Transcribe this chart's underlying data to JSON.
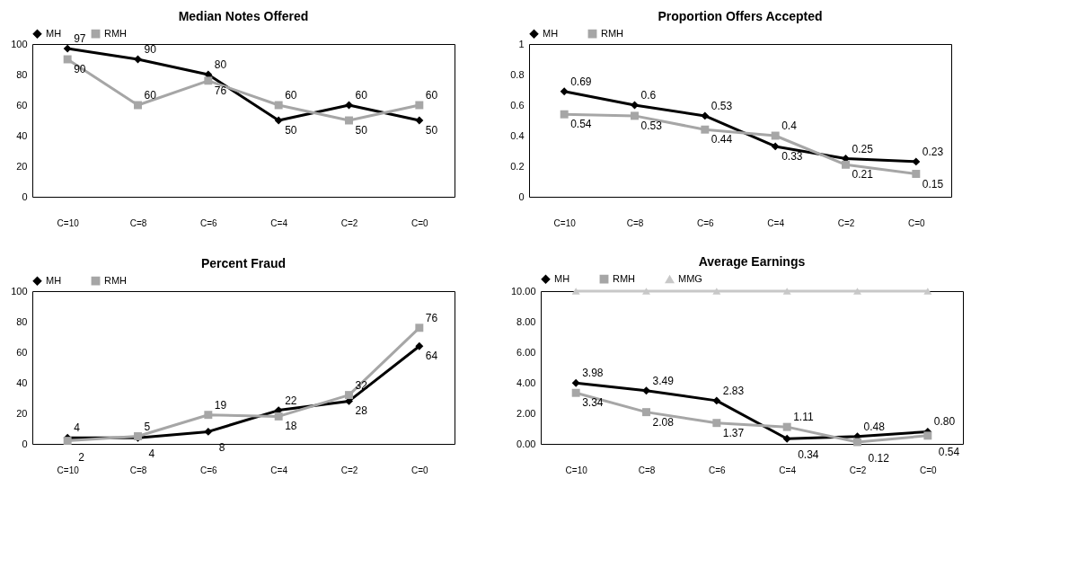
{
  "chart_data": [
    {
      "type": "line",
      "title": "Median Notes Offered",
      "categories": [
        "C=10",
        "C=8",
        "C=6",
        "C=4",
        "C=2",
        "C=0"
      ],
      "ylim": [
        0,
        100
      ],
      "yticks": [
        0,
        20,
        40,
        60,
        80,
        100
      ],
      "legend": "top",
      "grid": false,
      "data_labels": true,
      "series": [
        {
          "name": "MH",
          "color": "#000000",
          "marker": "diamond",
          "values": [
            97,
            90,
            80,
            50,
            60,
            50
          ]
        },
        {
          "name": "RMH",
          "color": "#a6a6a6",
          "marker": "square",
          "values": [
            90,
            60,
            76,
            60,
            50,
            60
          ]
        }
      ]
    },
    {
      "type": "line",
      "title": "Proportion Offers Accepted",
      "categories": [
        "C=10",
        "C=8",
        "C=6",
        "C=4",
        "C=2",
        "C=0"
      ],
      "ylim": [
        0,
        1
      ],
      "yticks": [
        0,
        0.2,
        0.4,
        0.6,
        0.8,
        1
      ],
      "legend": "top",
      "grid": false,
      "data_labels": true,
      "series": [
        {
          "name": "MH",
          "color": "#000000",
          "marker": "diamond",
          "values": [
            0.69,
            0.6,
            0.53,
            0.33,
            0.25,
            0.23
          ]
        },
        {
          "name": "RMH",
          "color": "#a6a6a6",
          "marker": "square",
          "values": [
            0.54,
            0.53,
            0.44,
            0.4,
            0.21,
            0.15
          ]
        }
      ]
    },
    {
      "type": "line",
      "title": "Percent Fraud",
      "categories": [
        "C=10",
        "C=8",
        "C=6",
        "C=4",
        "C=2",
        "C=0"
      ],
      "ylim": [
        0,
        100
      ],
      "yticks": [
        0,
        20,
        40,
        60,
        80,
        100
      ],
      "legend": "top",
      "grid": false,
      "data_labels": true,
      "series": [
        {
          "name": "MH",
          "color": "#000000",
          "marker": "diamond",
          "values": [
            4,
            4,
            8,
            22,
            28,
            64
          ]
        },
        {
          "name": "RMH",
          "color": "#a6a6a6",
          "marker": "square",
          "values": [
            2,
            5,
            19,
            18,
            32,
            76
          ]
        }
      ]
    },
    {
      "type": "line",
      "title": "Average Earnings",
      "categories": [
        "C=10",
        "C=8",
        "C=6",
        "C=4",
        "C=2",
        "C=0"
      ],
      "ylim": [
        0,
        10
      ],
      "yticks": [
        {
          "value": 0,
          "label": "0.00"
        },
        {
          "value": 2,
          "label": "2.00"
        },
        {
          "value": 4,
          "label": "4.00"
        },
        {
          "value": 6,
          "label": "6.00"
        },
        {
          "value": 8,
          "label": "8.00"
        },
        {
          "value": 10,
          "label": "10.00"
        }
      ],
      "legend": "top",
      "grid": false,
      "series": [
        {
          "name": "MH",
          "color": "#000000",
          "marker": "diamond",
          "values": [
            3.98,
            3.49,
            2.83,
            0.34,
            0.48,
            0.8
          ],
          "value_labels": [
            "3.98",
            "3.49",
            "2.83",
            "0.34",
            "0.48",
            "0.80"
          ]
        },
        {
          "name": "RMH",
          "color": "#a6a6a6",
          "marker": "square",
          "values": [
            3.34,
            2.08,
            1.37,
            1.11,
            0.12,
            0.54
          ],
          "value_labels": [
            "3.34",
            "2.08",
            "1.37",
            "1.11",
            "0.12",
            "0.54"
          ]
        },
        {
          "name": "MMG",
          "color": "#c8c8c8",
          "marker": "triangle",
          "values": [
            10,
            10,
            10,
            10,
            10,
            10
          ]
        }
      ]
    }
  ]
}
